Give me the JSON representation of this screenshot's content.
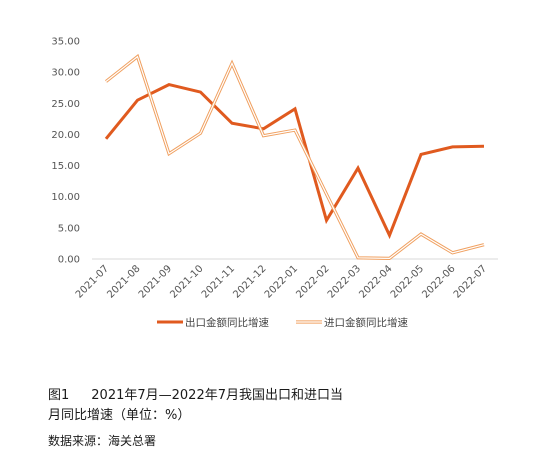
{
  "chart_data": {
    "type": "line",
    "categories": [
      "2021-07",
      "2021-08",
      "2021-09",
      "2021-10",
      "2021-11",
      "2021-12",
      "2022-01",
      "2022-02",
      "2022-03",
      "2022-04",
      "2022-05",
      "2022-06",
      "2022-07"
    ],
    "y_ticks": [
      "0.00",
      "5.00",
      "10.00",
      "15.00",
      "20.00",
      "25.00",
      "30.00",
      "35.00"
    ],
    "ylim": [
      0,
      35
    ],
    "series": [
      {
        "name": "出口金额同比增速",
        "color": "#e05a1f",
        "style": "solid-thick",
        "values": [
          19.3,
          25.5,
          28.0,
          26.8,
          21.8,
          20.9,
          24.1,
          6.2,
          14.6,
          3.8,
          16.8,
          18.0,
          18.1
        ]
      },
      {
        "name": "进口金额同比增速",
        "color": "#f0a060",
        "style": "double-line",
        "values": [
          28.5,
          32.5,
          16.9,
          20.2,
          31.4,
          19.8,
          20.7,
          10.4,
          0.2,
          0.1,
          4.0,
          1.0,
          2.3
        ]
      }
    ],
    "legend": "bottom",
    "grid": false
  },
  "caption": {
    "figure_no": "图1",
    "line1": "2021年7月—2022年7月我国出口和进口当",
    "line2": "月同比增速（单位：%）"
  },
  "source": "数据来源：海关总署"
}
